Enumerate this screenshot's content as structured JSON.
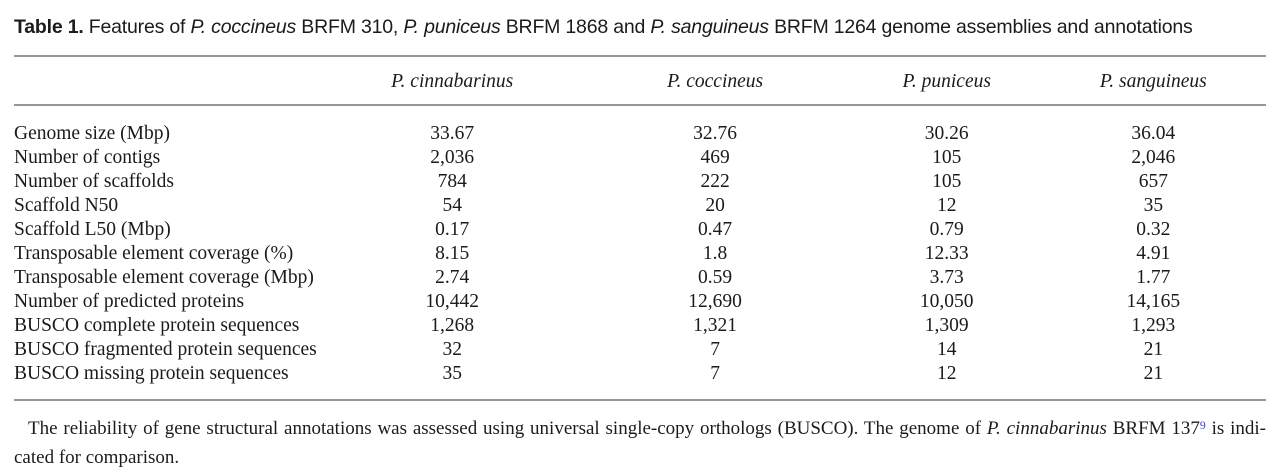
{
  "colors": {
    "rule": "#969696",
    "text": "#1b1b1b",
    "reference_link": "#4040d0"
  },
  "caption": {
    "label": "Table 1.",
    "segments": [
      {
        "text": " Features of ",
        "style": "normal"
      },
      {
        "text": "P. coccineus",
        "style": "italic"
      },
      {
        "text": " BRFM 310, ",
        "style": "normal"
      },
      {
        "text": "P. puniceus",
        "style": "italic"
      },
      {
        "text": " BRFM 1868 and ",
        "style": "normal"
      },
      {
        "text": "P. sanguineus",
        "style": "italic"
      },
      {
        "text": " BRFM 1264 genome assemblies and annotations",
        "style": "normal"
      }
    ]
  },
  "table": {
    "columns": [
      "",
      "P. cinnabarinus",
      "P. coccineus",
      "P. puniceus",
      "P. sanguineus"
    ],
    "rows": [
      {
        "label": "Genome size (Mbp)",
        "values": [
          "33.67",
          "32.76",
          "30.26",
          "36.04"
        ]
      },
      {
        "label": "Number of contigs",
        "values": [
          "2,036",
          "469",
          "105",
          "2,046"
        ]
      },
      {
        "label": "Number of scaffolds",
        "values": [
          "784",
          "222",
          "105",
          "657"
        ]
      },
      {
        "label": "Scaffold N50",
        "values": [
          "54",
          "20",
          "12",
          "35"
        ]
      },
      {
        "label": "Scaffold L50 (Mbp)",
        "values": [
          "0.17",
          "0.47",
          "0.79",
          "0.32"
        ]
      },
      {
        "label": "Transposable element coverage (%)",
        "values": [
          "8.15",
          "1.8",
          "12.33",
          "4.91"
        ]
      },
      {
        "label": "Transposable element coverage (Mbp)",
        "values": [
          "2.74",
          "0.59",
          "3.73",
          "1.77"
        ]
      },
      {
        "label": "Number of predicted proteins",
        "values": [
          "10,442",
          "12,690",
          "10,050",
          "14,165"
        ]
      },
      {
        "label": "BUSCO complete protein sequences",
        "values": [
          "1,268",
          "1,321",
          "1,309",
          "1,293"
        ]
      },
      {
        "label": "BUSCO fragmented protein sequences",
        "values": [
          "32",
          "7",
          "14",
          "21"
        ]
      },
      {
        "label": "BUSCO missing protein sequences",
        "values": [
          "35",
          "7",
          "12",
          "21"
        ]
      }
    ]
  },
  "footnote": {
    "line1_segments": [
      {
        "text": "The reliability of gene structural annotations was assessed using universal single-copy orthologs (BUSCO). The genome of ",
        "style": "normal"
      },
      {
        "text": "P. cinnabarinus",
        "style": "italic"
      },
      {
        "text": " BRFM 137",
        "style": "normal"
      },
      {
        "text": "9",
        "style": "sup",
        "name": "reference-citation-9",
        "interactable": true
      },
      {
        "text": " is indi-",
        "style": "normal"
      }
    ],
    "line2": "cated for comparison."
  }
}
